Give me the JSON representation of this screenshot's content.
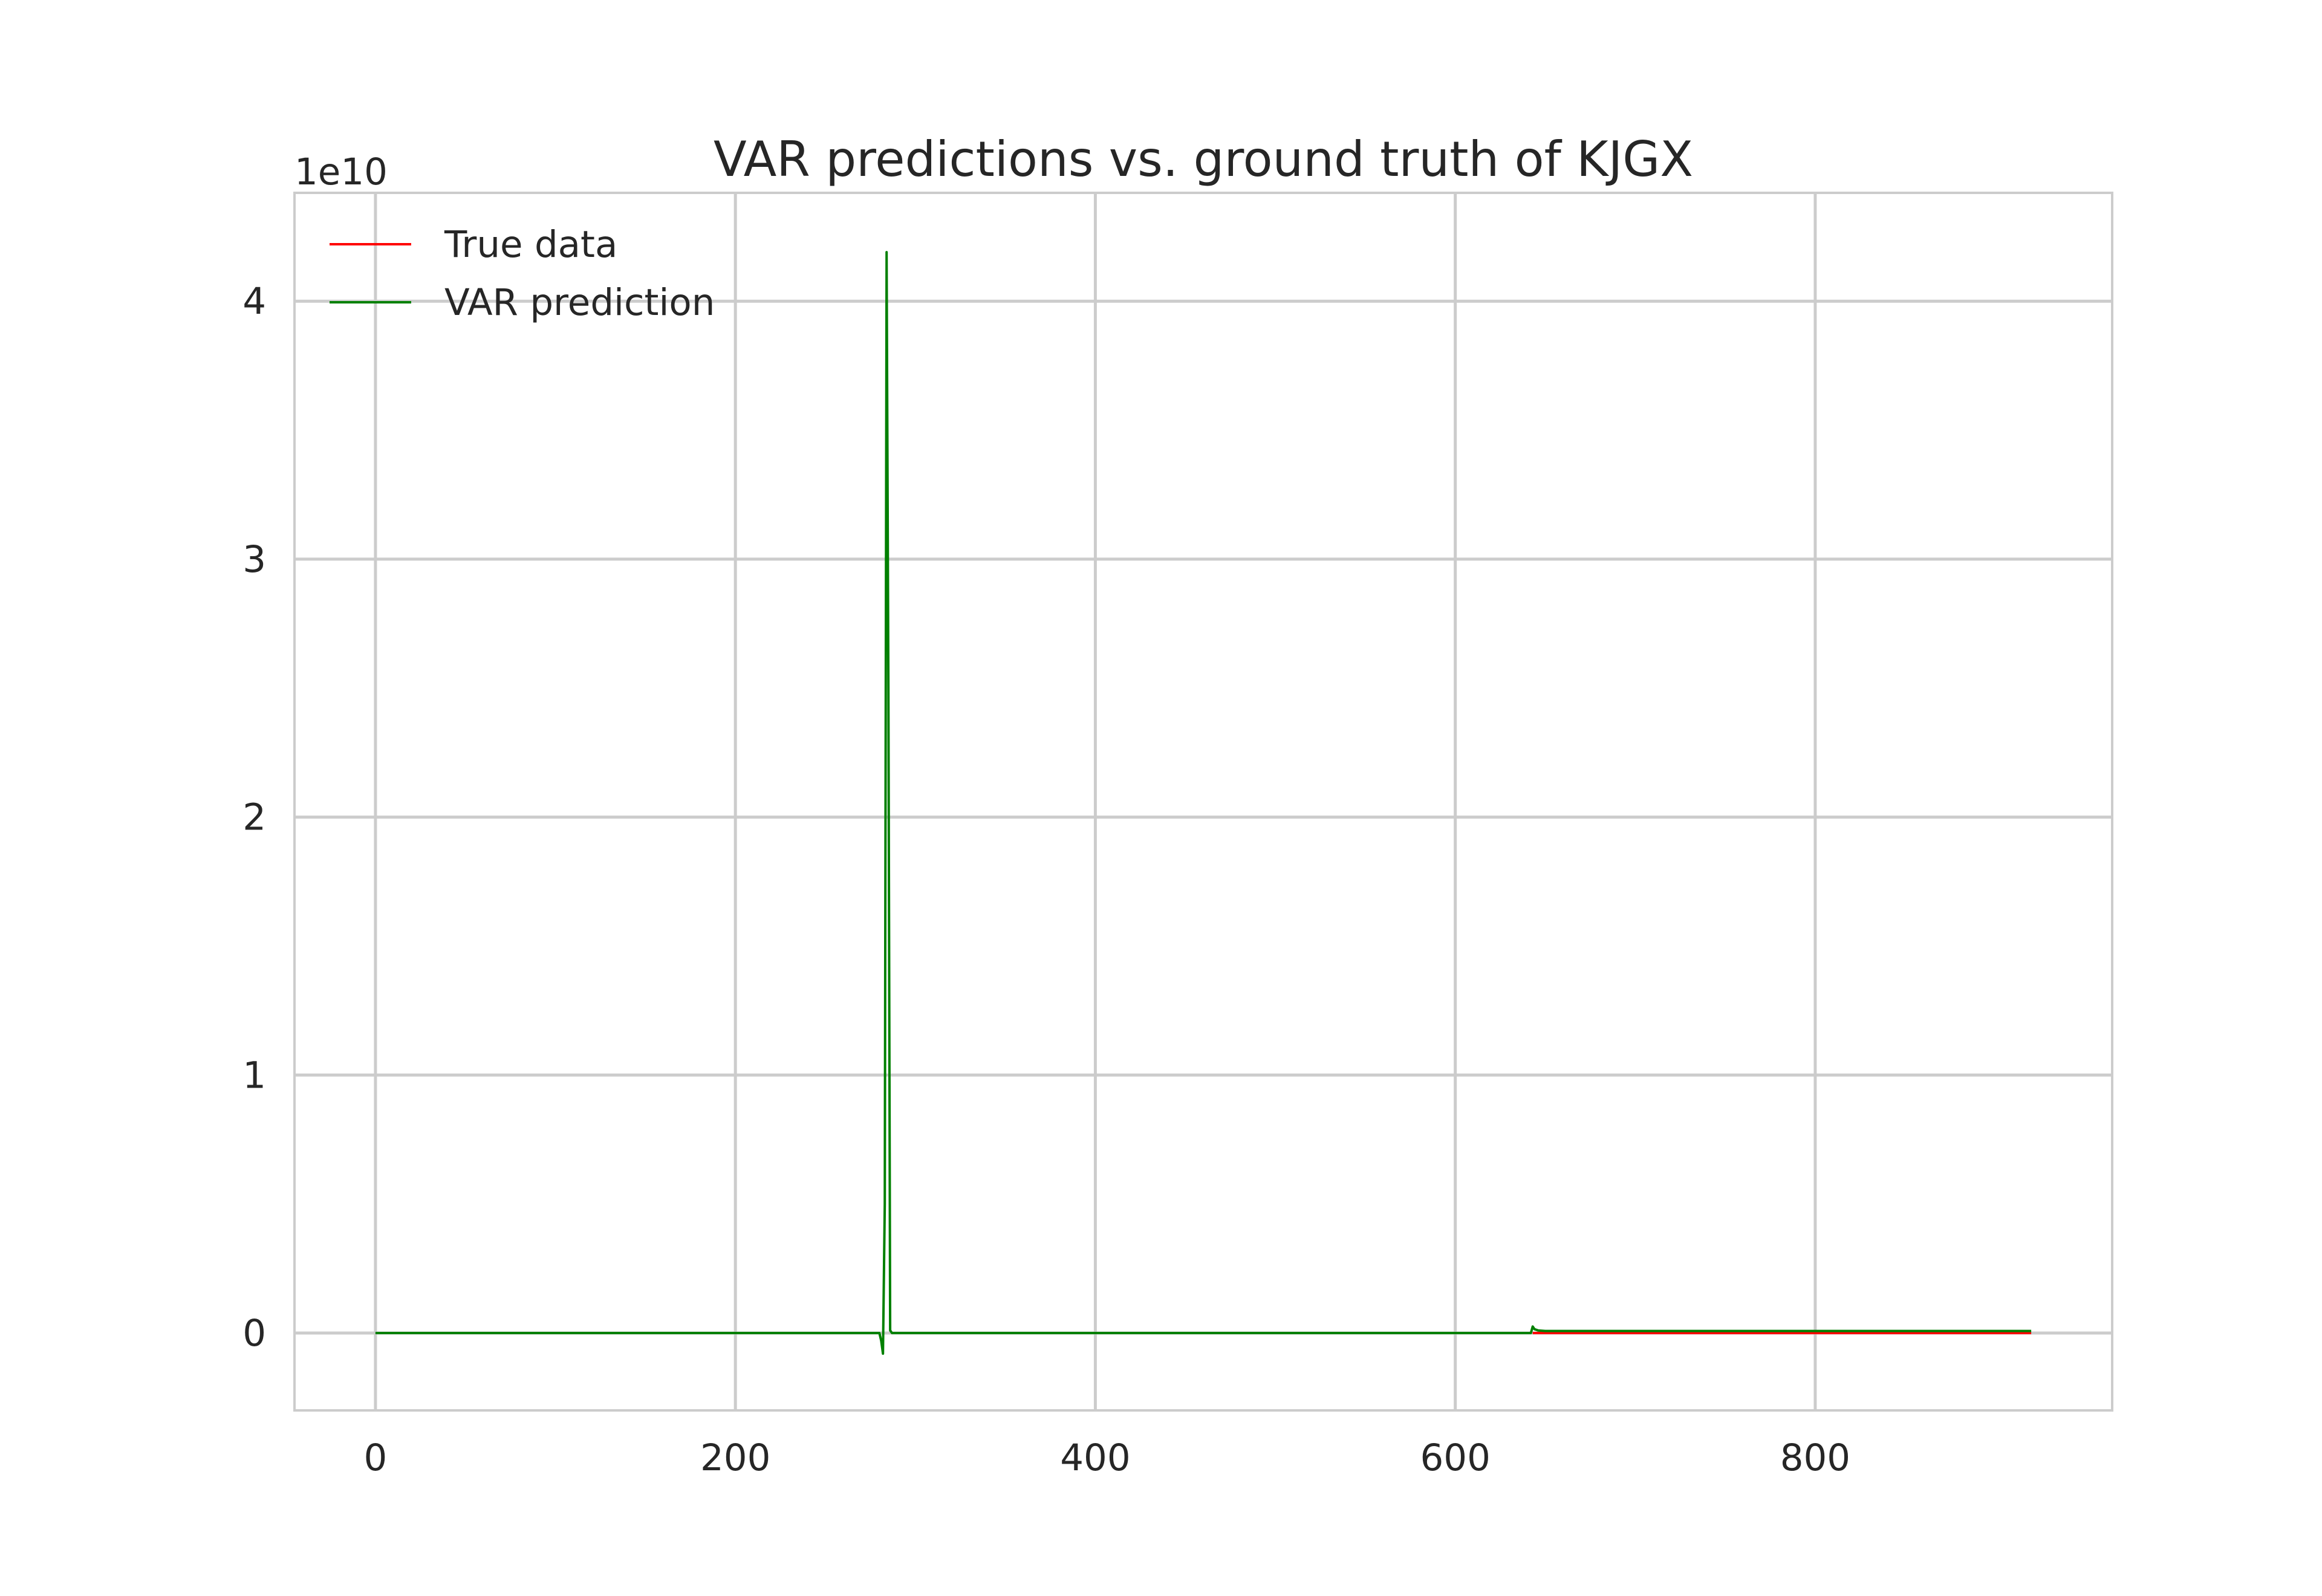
{
  "chart_data": {
    "type": "line",
    "title": "VAR predictions vs. ground truth of KJGX",
    "xlabel": "",
    "ylabel": "",
    "offset_label": "1e10",
    "xlim": [
      -45,
      965
    ],
    "ylim": [
      -0.3,
      4.42
    ],
    "y_scale_multiplier": 10000000000,
    "x_ticks": [
      0,
      200,
      400,
      600,
      800
    ],
    "x_tick_labels": [
      "0",
      "200",
      "400",
      "600",
      "800"
    ],
    "y_ticks": [
      0,
      1,
      2,
      3,
      4
    ],
    "y_tick_labels": [
      "0",
      "1",
      "2",
      "3",
      "4"
    ],
    "grid": true,
    "legend_position": "top-left",
    "series": [
      {
        "name": "True data",
        "color": "#ff0000",
        "x": [
          643,
          920
        ],
        "y": [
          0.0,
          0.0
        ]
      },
      {
        "name": "VAR prediction",
        "color": "#008000",
        "x": [
          0,
          100,
          200,
          280,
          281,
          282,
          283,
          284,
          285,
          286,
          287,
          288,
          300,
          400,
          500,
          600,
          642,
          643,
          644,
          646,
          650,
          700,
          800,
          920
        ],
        "y": [
          0.0,
          0.0,
          0.0,
          0.0,
          -0.03,
          -0.08,
          0.5,
          4.19,
          2.5,
          0.01,
          0.0,
          0.0,
          0.0,
          0.0,
          0.0,
          0.0,
          0.0,
          0.025,
          0.015,
          0.01,
          0.008,
          0.008,
          0.008,
          0.008
        ]
      }
    ]
  }
}
